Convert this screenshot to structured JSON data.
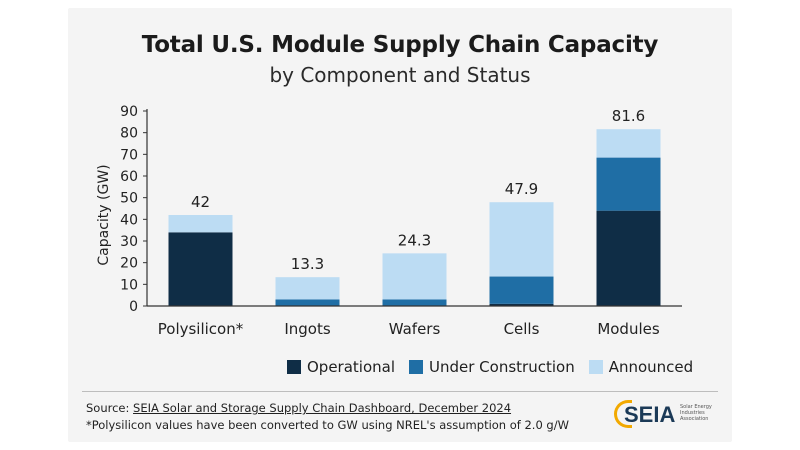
{
  "chart_data": {
    "type": "bar",
    "stacked": true,
    "title": "Total U.S. Module Supply Chain Capacity",
    "subtitle": "by Component and Status",
    "ylabel": "Capacity (GW)",
    "xlabel": "",
    "ylim": [
      0,
      90
    ],
    "yticks": [
      0,
      10,
      20,
      30,
      40,
      50,
      60,
      70,
      80,
      90
    ],
    "categories": [
      "Polysilicon*",
      "Ingots",
      "Wafers",
      "Cells",
      "Modules"
    ],
    "series": [
      {
        "name": "Operational",
        "color": "#0f2d46",
        "values": [
          34,
          0,
          0,
          1,
          44
        ]
      },
      {
        "name": "Under Construction",
        "color": "#1f6ea5",
        "values": [
          0,
          3,
          3,
          12.6,
          24.5
        ]
      },
      {
        "name": "Announced",
        "color": "#bcdcf3",
        "values": [
          8,
          10.3,
          21.3,
          34.3,
          13.1
        ]
      }
    ],
    "totals": [
      "42",
      "13.3",
      "24.3",
      "47.9",
      "81.6"
    ],
    "grid": false,
    "legend_position": "bottom"
  },
  "footer": {
    "source_prefix": "Source: ",
    "source_link": "SEIA Solar and Storage Supply Chain Dashboard, December 2024",
    "note": "*Polysilicon values have been converted to GW using NREL's assumption of 2.0 g/W"
  },
  "logo": {
    "text": "SEIA",
    "small": "Solar Energy Industries Association"
  },
  "colors": {
    "axis": "#333333",
    "card_background": "#f4f4f4"
  }
}
